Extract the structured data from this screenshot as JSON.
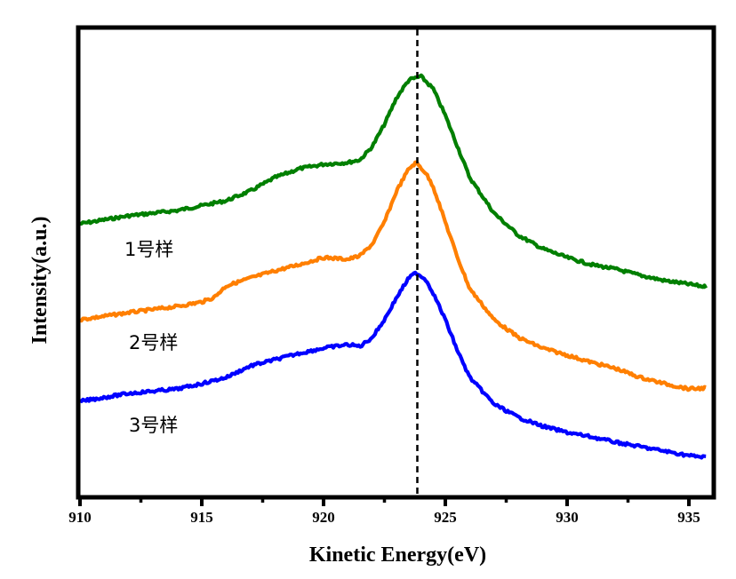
{
  "chart_data": {
    "type": "line",
    "title": "",
    "xlabel": "Kinetic Energy(eV)",
    "ylabel": "Intensity(a.u.)",
    "xlim": [
      910,
      936
    ],
    "ylim": [
      0,
      529
    ],
    "grid": false,
    "legend": "inline labels",
    "xticks": [
      910,
      915,
      920,
      925,
      930,
      935
    ],
    "xtick_labels": [
      "910",
      "915",
      "920",
      "925",
      "930",
      "935"
    ],
    "xminor_ticks": [
      912.5,
      917.5,
      922.5,
      927.5,
      932.5
    ],
    "yticks_shown": false,
    "reference_line": {
      "x": 923.85,
      "style": "dashed",
      "color": "#000000"
    },
    "series": [
      {
        "name": "1号样",
        "color": "#007F00",
        "x": [
          910,
          912,
          914,
          916,
          917,
          918,
          919,
          920,
          921,
          921.5,
          922,
          922.5,
          923,
          923.5,
          924,
          924.5,
          925,
          925.5,
          926,
          927,
          928,
          929,
          930,
          931,
          932,
          933,
          934,
          935,
          935.7
        ],
        "y": [
          308,
          317,
          323,
          334,
          345,
          360,
          370,
          375,
          377,
          380,
          395,
          420,
          450,
          470,
          474,
          460,
          430,
          395,
          360,
          320,
          295,
          280,
          270,
          262,
          257,
          250,
          244,
          240,
          237
        ]
      },
      {
        "name": "2号样",
        "color": "#FF7F00",
        "x": [
          910,
          912,
          914,
          915,
          915.5,
          916,
          917,
          918,
          919,
          920,
          921,
          921.5,
          922,
          922.5,
          923,
          923.5,
          923.8,
          924.2,
          924.5,
          925,
          925.5,
          926,
          927,
          928,
          929,
          930,
          931,
          932,
          933,
          934,
          935,
          935.7
        ],
        "y": [
          200,
          208,
          215,
          220,
          225,
          238,
          247,
          255,
          262,
          270,
          268,
          272,
          285,
          310,
          345,
          370,
          377,
          365,
          350,
          310,
          270,
          235,
          200,
          180,
          168,
          160,
          152,
          145,
          135,
          128,
          122,
          123
        ]
      },
      {
        "name": "3号样",
        "color": "#0000FF",
        "x": [
          910,
          912,
          914,
          915,
          916,
          917,
          918,
          919,
          920,
          921,
          921.5,
          922,
          922.5,
          923,
          923.5,
          923.8,
          924.2,
          924.5,
          925,
          925.5,
          926,
          927,
          928,
          929,
          930,
          931,
          932,
          933,
          934,
          935,
          935.7
        ],
        "y": [
          108,
          117,
          122,
          128,
          135,
          148,
          155,
          162,
          168,
          172,
          170,
          180,
          200,
          225,
          247,
          253,
          245,
          230,
          200,
          165,
          135,
          105,
          90,
          80,
          73,
          68,
          62,
          57,
          52,
          47,
          45
        ]
      }
    ],
    "annotations": [
      {
        "text": "1号样",
        "series": "1号样",
        "position": "below-left of curve"
      },
      {
        "text": "2号样",
        "series": "2号样",
        "position": "below-left of curve"
      },
      {
        "text": "3号样",
        "series": "3号样",
        "position": "below-left of curve"
      }
    ]
  }
}
